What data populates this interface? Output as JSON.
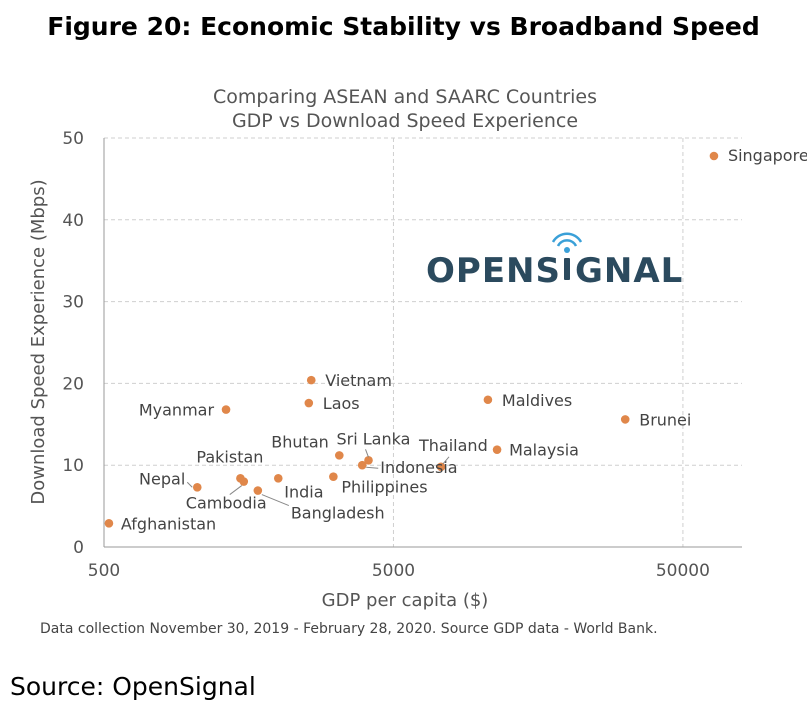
{
  "figure_title": "Figure 20: Economic Stability vs Broadband Speed",
  "footnote": "Data collection November 30, 2019 - February 28, 2020. Source GDP data - World Bank.",
  "source": "Source: OpenSignal",
  "logo": {
    "text_left": "OPENS",
    "text_right": "GNAL",
    "color": "#2b4a5e",
    "accent": "#3aa0d8"
  },
  "chart_data": {
    "type": "scatter",
    "title": [
      "Comparing  ASEAN and SAARC Countries",
      "GDP vs Download Speed Experience"
    ],
    "xlabel": "GDP per capita ($)",
    "ylabel": "Download Speed Experience (Mbps)",
    "xscale": "log",
    "xlim": [
      500,
      80000
    ],
    "ylim": [
      0,
      50
    ],
    "xticks": [
      500,
      5000,
      50000
    ],
    "yticks": [
      0,
      10,
      20,
      30,
      40,
      50
    ],
    "grid": true,
    "marker_color": "#e0874a",
    "points": [
      {
        "label": "Singapore",
        "x": 64000,
        "y": 47.8
      },
      {
        "label": "Vietnam",
        "x": 2600,
        "y": 20.4
      },
      {
        "label": "Laos",
        "x": 2550,
        "y": 17.6
      },
      {
        "label": "Myanmar",
        "x": 1320,
        "y": 16.8
      },
      {
        "label": "Maldives",
        "x": 10600,
        "y": 18.0
      },
      {
        "label": "Brunei",
        "x": 31600,
        "y": 15.6
      },
      {
        "label": "Malaysia",
        "x": 11400,
        "y": 11.9
      },
      {
        "label": "Thailand",
        "x": 7300,
        "y": 9.8
      },
      {
        "label": "Sri Lanka",
        "x": 4100,
        "y": 10.6
      },
      {
        "label": "Indonesia",
        "x": 3900,
        "y": 10.0
      },
      {
        "label": "Bhutan",
        "x": 3250,
        "y": 11.2
      },
      {
        "label": "Philippines",
        "x": 3100,
        "y": 8.6
      },
      {
        "label": "Pakistan",
        "x": 1480,
        "y": 8.4
      },
      {
        "label": "Cambodia",
        "x": 1520,
        "y": 8.0
      },
      {
        "label": "India",
        "x": 2000,
        "y": 8.4
      },
      {
        "label": "Bangladesh",
        "x": 1700,
        "y": 6.9
      },
      {
        "label": "Nepal",
        "x": 1050,
        "y": 7.3
      },
      {
        "label": "Afghanistan",
        "x": 520,
        "y": 2.9
      }
    ]
  }
}
